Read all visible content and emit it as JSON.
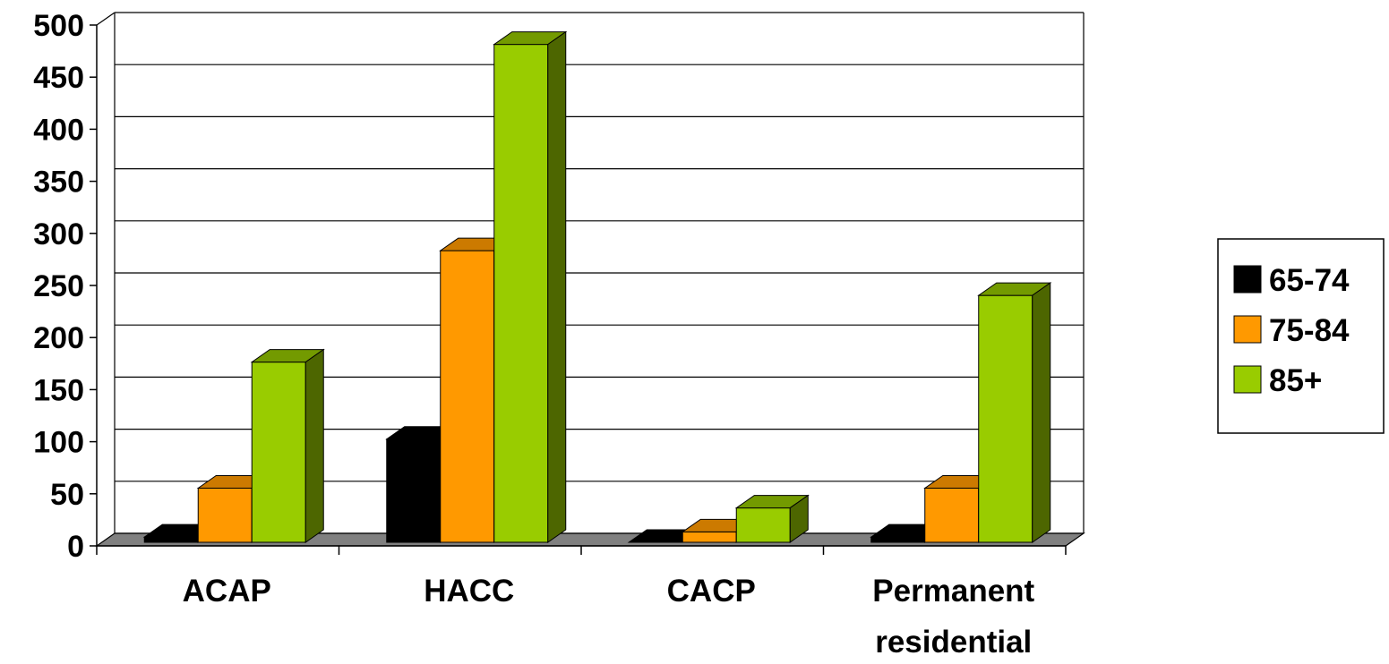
{
  "chart_data": {
    "type": "bar",
    "categories": [
      "ACAP",
      "HACC",
      "CACP",
      "Permanent residential"
    ],
    "category_label_lines": [
      [
        "ACAP"
      ],
      [
        "HACC"
      ],
      [
        "CACP"
      ],
      [
        "Permanent",
        "residential"
      ]
    ],
    "series": [
      {
        "name": "65-74",
        "values": [
          5,
          99,
          0,
          5
        ],
        "color": "#000000",
        "top_color": "#000000",
        "side_color": "#000000"
      },
      {
        "name": "75-84",
        "values": [
          52,
          280,
          10,
          52
        ],
        "color": "#ff9900",
        "top_color": "#cc7a00",
        "side_color": "#cc7a00"
      },
      {
        "name": "85+",
        "values": [
          173,
          478,
          33,
          237
        ],
        "color": "#99cc00",
        "top_color": "#739a00",
        "side_color": "#4d6600"
      }
    ],
    "ylim": [
      0,
      500
    ],
    "yticks": [
      0,
      50,
      100,
      150,
      200,
      250,
      300,
      350,
      400,
      450,
      500
    ],
    "grid": true,
    "legend_position": "right",
    "floor_color": "#808080",
    "title": "",
    "xlabel": "",
    "ylabel": ""
  }
}
